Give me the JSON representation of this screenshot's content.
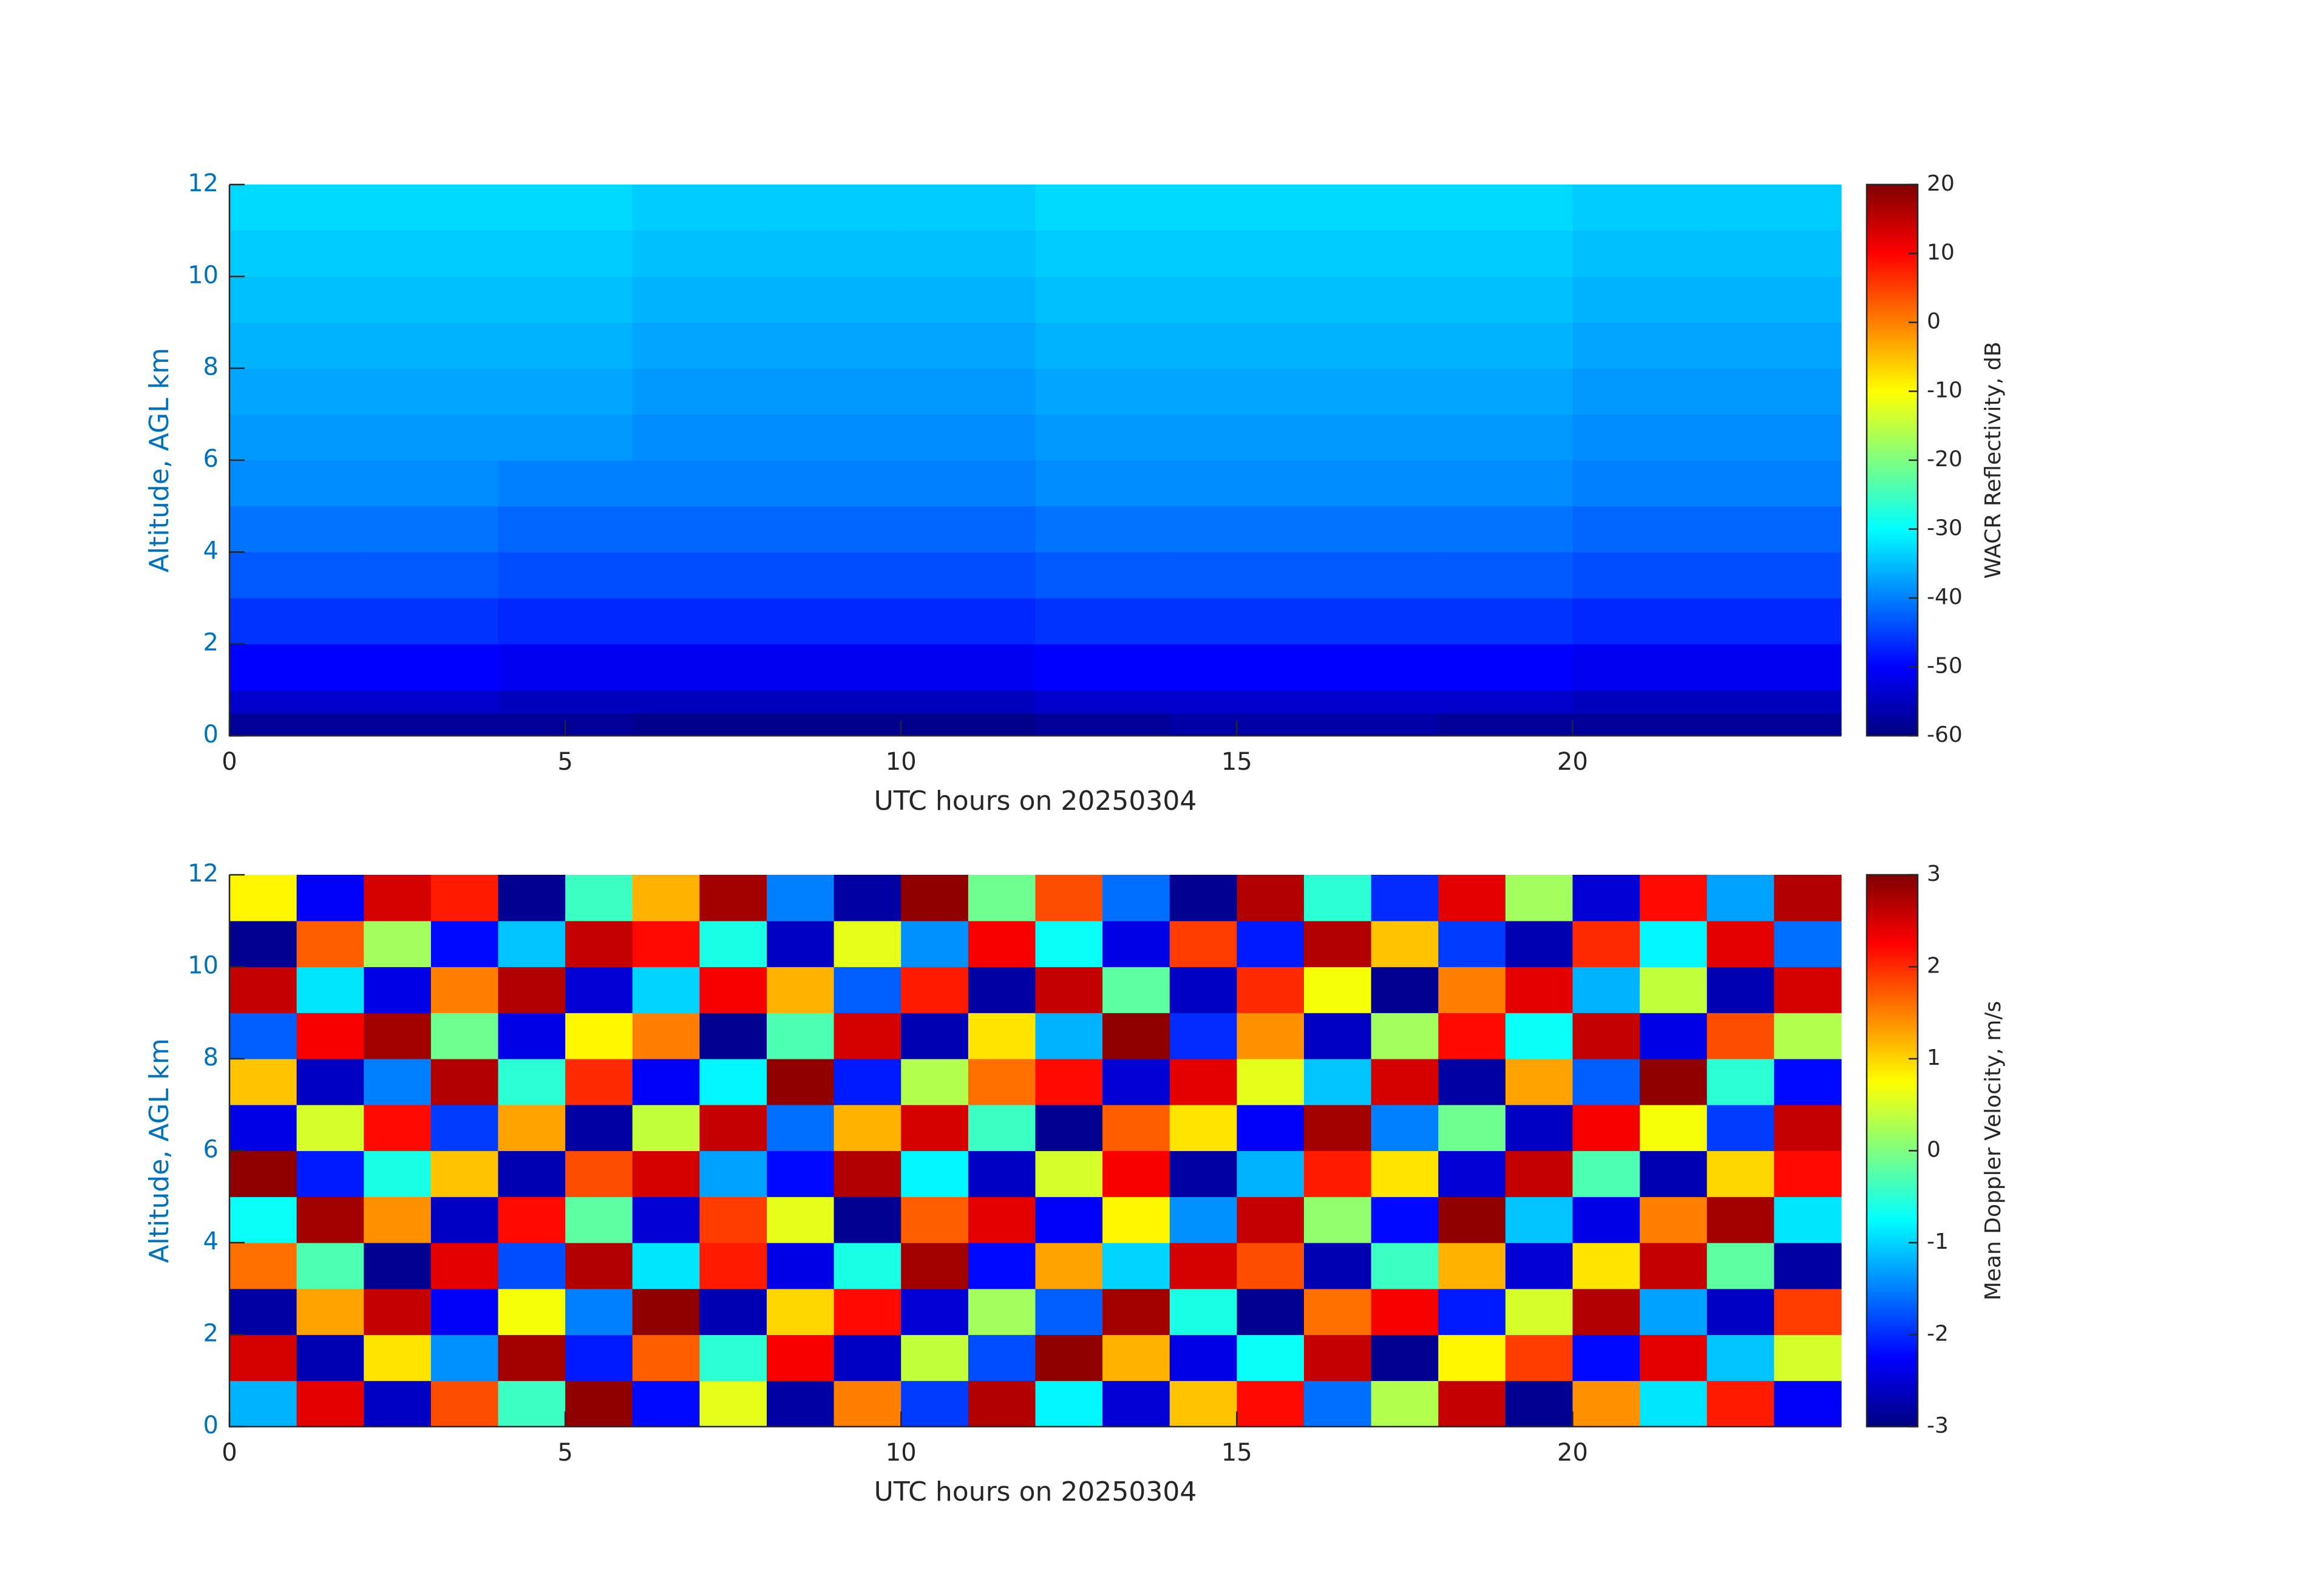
{
  "chart_data": [
    {
      "type": "heatmap",
      "xlabel": "UTC hours on 20250304",
      "ylabel": "Altitude, AGL km",
      "colorbar_label": "WACR Reflectivity, dB",
      "colormap": "jet",
      "clim": [
        -60,
        20
      ],
      "cticks": [
        -60,
        -50,
        -40,
        -30,
        -20,
        -10,
        0,
        10,
        20
      ],
      "xlim": [
        0,
        24
      ],
      "xticks": [
        0,
        5,
        10,
        15,
        20
      ],
      "ylim": [
        0,
        12
      ],
      "yticks": [
        0,
        2,
        4,
        6,
        8,
        10,
        12
      ],
      "xbins": [
        0,
        2,
        4,
        6,
        8,
        10,
        12,
        14,
        16,
        18,
        20,
        22,
        24
      ],
      "ybins": [
        0,
        0.5,
        1,
        2,
        3,
        4,
        5,
        6,
        7,
        8,
        9,
        10,
        11,
        12
      ],
      "values": [
        [
          -58,
          -58,
          -58,
          -59,
          -59,
          -59,
          -58,
          -57,
          -57,
          -58,
          -58,
          -58
        ],
        [
          -54,
          -54,
          -55,
          -55,
          -55,
          -55,
          -54,
          -54,
          -54,
          -54,
          -55,
          -55
        ],
        [
          -50,
          -50,
          -51,
          -51,
          -51,
          -51,
          -50,
          -50,
          -50,
          -50,
          -51,
          -51
        ],
        [
          -46,
          -46,
          -47,
          -47,
          -47,
          -47,
          -46,
          -46,
          -46,
          -46,
          -47,
          -47
        ],
        [
          -43,
          -43,
          -44,
          -44,
          -44,
          -44,
          -43,
          -43,
          -43,
          -43,
          -44,
          -44
        ],
        [
          -41,
          -41,
          -42,
          -42,
          -42,
          -42,
          -41,
          -41,
          -41,
          -41,
          -42,
          -42
        ],
        [
          -39,
          -39,
          -40,
          -40,
          -40,
          -40,
          -39,
          -39,
          -39,
          -39,
          -40,
          -40
        ],
        [
          -38,
          -38,
          -38,
          -39,
          -39,
          -39,
          -38,
          -38,
          -38,
          -38,
          -39,
          -39
        ],
        [
          -37,
          -37,
          -37,
          -38,
          -38,
          -38,
          -37,
          -37,
          -37,
          -37,
          -38,
          -38
        ],
        [
          -36,
          -36,
          -36,
          -37,
          -37,
          -37,
          -36,
          -36,
          -36,
          -36,
          -37,
          -37
        ],
        [
          -35,
          -35,
          -35,
          -36,
          -36,
          -36,
          -35,
          -35,
          -35,
          -35,
          -36,
          -36
        ],
        [
          -34,
          -34,
          -34,
          -35,
          -35,
          -35,
          -34,
          -34,
          -34,
          -34,
          -35,
          -35
        ],
        [
          -33,
          -33,
          -33,
          -34,
          -34,
          -34,
          -33,
          -33,
          -33,
          -33,
          -34,
          -34
        ]
      ]
    },
    {
      "type": "heatmap",
      "xlabel": "UTC hours on 20250304",
      "ylabel": "Altitude, AGL km",
      "colorbar_label": "Mean Doppler Velocity, m/s",
      "colormap": "jet",
      "clim": [
        -3,
        3
      ],
      "cticks": [
        -3,
        -2,
        -1,
        0,
        1,
        2,
        3
      ],
      "xlim": [
        0,
        24
      ],
      "xticks": [
        0,
        5,
        10,
        15,
        20
      ],
      "ylim": [
        0,
        12
      ],
      "yticks": [
        0,
        2,
        4,
        6,
        8,
        10,
        12
      ],
      "xbins": [
        0,
        1,
        2,
        3,
        4,
        5,
        6,
        7,
        8,
        9,
        10,
        11,
        12,
        13,
        14,
        15,
        16,
        17,
        18,
        19,
        20,
        21,
        22,
        23,
        24
      ],
      "ybins": [
        0,
        1,
        2,
        3,
        4,
        5,
        6,
        7,
        8,
        9,
        10,
        11,
        12
      ],
      "values": [
        [
          -1.2,
          2.4,
          -2.6,
          1.8,
          -0.4,
          2.9,
          -2.2,
          0.6,
          -2.8,
          1.5,
          -1.9,
          2.7,
          -0.8,
          -2.5,
          1.1,
          2.2,
          -1.6,
          0.3,
          2.6,
          -2.9,
          1.4,
          -0.9,
          2.1,
          -2.3
        ],
        [
          2.5,
          -2.7,
          0.9,
          -1.4,
          2.8,
          -2.1,
          1.7,
          -0.5,
          2.3,
          -2.6,
          0.4,
          -1.8,
          2.9,
          1.2,
          -2.4,
          -0.7,
          2.6,
          -2.9,
          0.8,
          1.9,
          -2.2,
          2.4,
          -1.1,
          0.5
        ],
        [
          -2.8,
          1.3,
          2.6,
          -2.3,
          0.7,
          -1.5,
          2.9,
          -2.7,
          1.0,
          2.2,
          -2.5,
          0.2,
          -1.7,
          2.8,
          -0.6,
          -2.9,
          1.6,
          2.3,
          -2.1,
          0.5,
          2.7,
          -1.3,
          -2.6,
          1.9
        ],
        [
          1.6,
          -0.3,
          -2.9,
          2.4,
          -1.8,
          2.7,
          -0.9,
          2.1,
          -2.4,
          -0.6,
          2.8,
          -2.2,
          1.3,
          -1.0,
          2.5,
          1.8,
          -2.7,
          -0.4,
          1.2,
          -2.5,
          0.9,
          2.6,
          -0.2,
          -2.8
        ],
        [
          -0.7,
          2.8,
          1.4,
          -2.6,
          2.2,
          -0.2,
          -2.5,
          1.9,
          0.6,
          -2.9,
          1.7,
          2.4,
          -2.3,
          0.8,
          -1.4,
          2.6,
          0.1,
          -2.2,
          2.9,
          -1.1,
          -2.4,
          1.5,
          2.8,
          -0.9
        ],
        [
          2.9,
          -2.1,
          -0.6,
          1.1,
          -2.7,
          1.8,
          2.5,
          -1.3,
          -2.2,
          2.7,
          -0.8,
          -2.6,
          0.5,
          2.3,
          -2.8,
          -1.2,
          2.1,
          0.9,
          -2.5,
          2.6,
          -0.3,
          -2.7,
          1.0,
          2.2
        ],
        [
          -2.4,
          0.5,
          2.2,
          -1.9,
          1.3,
          -2.8,
          0.4,
          2.6,
          -1.6,
          1.2,
          2.5,
          -0.4,
          -2.9,
          1.7,
          0.9,
          -2.3,
          2.8,
          -1.5,
          -0.1,
          -2.6,
          2.3,
          0.7,
          -1.9,
          2.6
        ],
        [
          1.1,
          -2.6,
          -1.5,
          2.7,
          -0.5,
          2.0,
          -2.3,
          -0.8,
          2.9,
          -2.1,
          0.3,
          1.6,
          2.2,
          -2.5,
          2.4,
          0.6,
          -1.1,
          2.5,
          -2.8,
          1.3,
          -1.7,
          2.9,
          -0.5,
          -2.2
        ],
        [
          -1.7,
          2.3,
          2.8,
          -0.1,
          -2.4,
          0.8,
          1.5,
          -2.9,
          -0.3,
          2.5,
          -2.7,
          0.9,
          -1.2,
          2.9,
          -2.0,
          1.4,
          -2.6,
          0.2,
          2.2,
          -0.7,
          2.6,
          -2.4,
          1.8,
          0.3
        ],
        [
          2.6,
          -0.9,
          -2.4,
          1.5,
          2.7,
          -2.5,
          -1.0,
          2.3,
          1.2,
          -1.7,
          2.1,
          -2.8,
          2.6,
          -0.2,
          -2.6,
          2.0,
          0.7,
          -2.9,
          1.5,
          2.4,
          -1.2,
          0.4,
          -2.7,
          2.5
        ],
        [
          -2.9,
          1.7,
          0.2,
          -2.2,
          -1.1,
          2.6,
          2.2,
          -0.6,
          -2.6,
          0.6,
          -1.4,
          2.3,
          -0.7,
          -2.4,
          1.9,
          -2.1,
          2.7,
          1.1,
          -1.9,
          -2.7,
          2.0,
          -0.8,
          2.4,
          -1.6
        ],
        [
          0.8,
          -2.3,
          2.5,
          2.1,
          -2.9,
          -0.4,
          1.2,
          2.8,
          -1.5,
          -2.8,
          2.9,
          -0.1,
          1.8,
          -1.6,
          -2.9,
          2.7,
          -0.5,
          -2.0,
          2.4,
          0.2,
          -2.5,
          2.2,
          -1.3,
          2.7
        ]
      ]
    }
  ]
}
